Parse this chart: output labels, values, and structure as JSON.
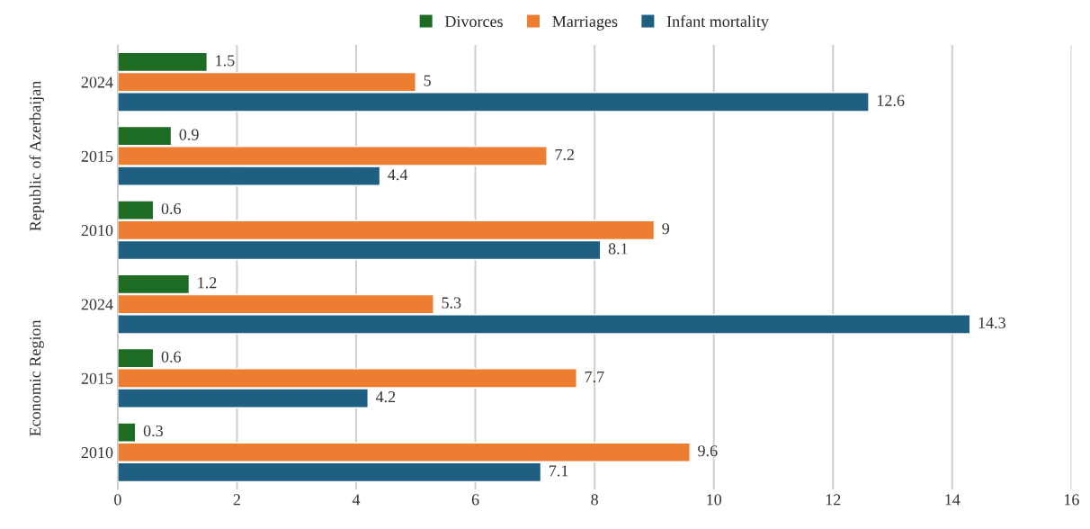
{
  "chart_data": {
    "type": "bar",
    "orientation": "horizontal",
    "categories": [
      "2024",
      "2015",
      "2010",
      "2024",
      "2015",
      "2010"
    ],
    "series": [
      {
        "name": "Divorces",
        "color": "#1e6b24",
        "values": [
          1.5,
          0.9,
          0.6,
          1.2,
          0.6,
          0.3
        ]
      },
      {
        "name": "Marriages",
        "color": "#ed7d31",
        "values": [
          5,
          7.2,
          9,
          5.3,
          7.7,
          9.6
        ]
      },
      {
        "name": "Infant mortality",
        "color": "#1f5f82",
        "values": [
          12.6,
          4.4,
          8.1,
          14.3,
          4.2,
          7.1
        ]
      }
    ],
    "xlim": [
      0,
      16
    ],
    "xticks": [
      0,
      2,
      4,
      6,
      8,
      10,
      12,
      14,
      16
    ],
    "grid": "x",
    "legend": "top",
    "data_labels": true,
    "annotations": [
      "Republic of Azerbaijan",
      "Economic Region"
    ]
  }
}
